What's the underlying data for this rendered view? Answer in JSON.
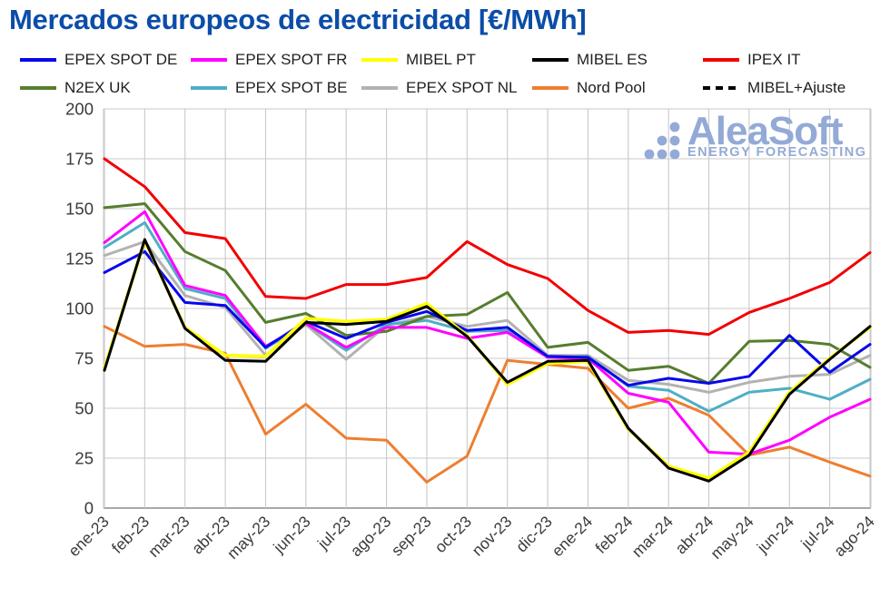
{
  "title": "Mercados europeos de electricidad [€/MWh]",
  "title_color": "#0B4DA8",
  "watermark": {
    "name": "AleaSoft",
    "tagline": "ENERGY FORECASTING",
    "color": "#93AAD6"
  },
  "axis": {
    "text_color": "#3A3A3A",
    "grid_color": "#C9C9C9",
    "axis_line_color": "#8C8C8C"
  },
  "chart_data": {
    "type": "line",
    "title": "Mercados europeos de electricidad [€/MWh]",
    "xlabel": "",
    "ylabel": "",
    "ylim": [
      0,
      200
    ],
    "yticks": [
      0,
      25,
      50,
      75,
      100,
      125,
      150,
      175,
      200
    ],
    "grid": true,
    "legend_position": "top",
    "categories": [
      "ene-23",
      "feb-23",
      "mar-23",
      "abr-23",
      "may-23",
      "jun-23",
      "jul-23",
      "ago-23",
      "sep-23",
      "oct-23",
      "nov-23",
      "dic-23",
      "ene-24",
      "feb-24",
      "mar-24",
      "abr-24",
      "may-24",
      "jun-24",
      "jul-24",
      "ago-24"
    ],
    "series": [
      {
        "name": "EPEX SPOT DE",
        "color": "#0707EC",
        "dash": null,
        "values": [
          118,
          128.5,
          103,
          101.5,
          80.5,
          93.5,
          85,
          93,
          98.5,
          89,
          90.5,
          76,
          75.5,
          61.5,
          65,
          62.5,
          66,
          86.5,
          68,
          82
        ]
      },
      {
        "name": "EPEX SPOT FR",
        "color": "#FF00FF",
        "dash": null,
        "values": [
          133,
          148.5,
          111.5,
          106.5,
          81,
          92.5,
          80.5,
          90.5,
          90.5,
          85,
          88,
          75.5,
          75,
          57.5,
          53,
          28,
          27,
          34,
          45.5,
          54.5
        ]
      },
      {
        "name": "MIBEL PT",
        "color": "#FFFF00",
        "dash": null,
        "values": [
          70,
          134,
          90.5,
          76.5,
          76,
          95,
          93.5,
          94.5,
          102.5,
          86.5,
          62,
          72.5,
          73.5,
          39.5,
          21,
          15,
          28,
          58,
          75,
          90.5
        ]
      },
      {
        "name": "MIBEL ES",
        "color": "#000000",
        "dash": null,
        "values": [
          69,
          134.5,
          90,
          74,
          73.5,
          93,
          92,
          93.5,
          101,
          86,
          63,
          73.5,
          74,
          40,
          20,
          13.5,
          26.5,
          57,
          74.5,
          91
        ]
      },
      {
        "name": "IPEX IT",
        "color": "#F20000",
        "dash": null,
        "values": [
          175,
          161,
          138,
          135,
          106,
          105,
          112,
          112,
          115.5,
          133.5,
          122,
          115,
          99,
          88,
          89,
          87,
          98,
          105,
          113,
          128
        ]
      },
      {
        "name": "N2EX UK",
        "color": "#567D2E",
        "dash": null,
        "values": [
          150.5,
          152.5,
          128.5,
          119,
          93,
          97.5,
          86.5,
          88.5,
          96,
          97,
          108,
          80.5,
          83,
          69,
          71,
          62.5,
          83.5,
          84,
          82,
          70.5
        ]
      },
      {
        "name": "EPEX SPOT BE",
        "color": "#4FAEC6",
        "dash": null,
        "values": [
          130.5,
          143,
          110,
          105,
          80,
          92.5,
          79,
          92,
          94,
          88.5,
          89,
          75.5,
          76,
          61,
          59,
          48.5,
          58,
          60,
          54.5,
          64.5
        ]
      },
      {
        "name": "EPEX SPOT NL",
        "color": "#B2B2B2",
        "dash": null,
        "values": [
          126.5,
          133.5,
          106.5,
          100.5,
          76.5,
          92,
          74.5,
          91.5,
          96,
          91,
          94,
          76.5,
          76.5,
          64,
          62,
          58,
          63,
          66,
          67,
          76.5
        ]
      },
      {
        "name": "Nord Pool",
        "color": "#EE7E30",
        "dash": null,
        "values": [
          91,
          81,
          82,
          77.5,
          37,
          52,
          35,
          34,
          13,
          26,
          74,
          72,
          70,
          50,
          55,
          46.5,
          26.5,
          30.5,
          23,
          16
        ]
      },
      {
        "name": "MIBEL+Ajuste",
        "color": "#000000",
        "dash": "7 5",
        "values": [
          69,
          134.5,
          90,
          74,
          73.5,
          93,
          92,
          93.5,
          101,
          86,
          63,
          73.5,
          74,
          40,
          20,
          13.5,
          26.5,
          57,
          74.5,
          91
        ]
      }
    ],
    "draw_order": [
      "EPEX SPOT NL",
      "EPEX SPOT BE",
      "N2EX UK",
      "Nord Pool",
      "EPEX SPOT FR",
      "EPEX SPOT DE",
      "MIBEL PT",
      "MIBEL+Ajuste",
      "MIBEL ES",
      "IPEX IT"
    ]
  }
}
